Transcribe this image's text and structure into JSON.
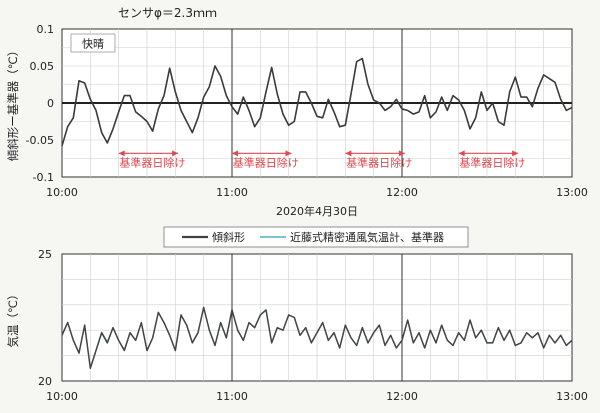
{
  "chart_data": [
    {
      "type": "line",
      "sensor_label": "センサφ＝2.3ｍｍ",
      "weather_label": "快晴",
      "ylabel": "傾斜形ー基準器（℃）",
      "xlabel": "",
      "date_label": "2020年4月30日",
      "xlim": [
        "10:00",
        "13:00"
      ],
      "ylim": [
        -0.1,
        0.1
      ],
      "x_ticks": [
        "10:00",
        "11:00",
        "12:00",
        "13:00"
      ],
      "y_ticks": [
        "0.1",
        "0.05",
        "0",
        "-0.05",
        "-0.1"
      ],
      "grid": true,
      "sun_annotations": [
        {
          "label": "基準器日除け",
          "start": "10:20",
          "end": "10:41"
        },
        {
          "label": "基準器日除け",
          "start": "11:00",
          "end": "11:21"
        },
        {
          "label": "基準器日除け",
          "start": "11:40",
          "end": "12:01"
        },
        {
          "label": "基準器日除け",
          "start": "12:20",
          "end": "12:41"
        }
      ],
      "series": [
        {
          "name": "",
          "minutes": [
            0,
            2,
            4,
            6,
            8,
            10,
            12,
            14,
            16,
            18,
            20,
            22,
            24,
            26,
            28,
            30,
            32,
            34,
            36,
            38,
            40,
            42,
            44,
            46,
            48,
            50,
            52,
            54,
            56,
            58,
            60,
            62,
            64,
            66,
            68,
            70,
            72,
            74,
            76,
            78,
            80,
            82,
            84,
            86,
            88,
            90,
            92,
            94,
            96,
            98,
            100,
            102,
            104,
            106,
            108,
            110,
            112,
            114,
            116,
            118,
            120,
            122,
            124,
            126,
            128,
            130,
            132,
            134,
            136,
            138,
            140,
            142,
            144,
            146,
            148,
            150,
            152,
            154,
            156,
            158,
            160,
            162,
            164,
            166,
            168,
            170,
            172,
            174,
            176,
            178,
            180
          ],
          "values": [
            -0.058,
            -0.032,
            -0.02,
            0.03,
            0.027,
            0.005,
            -0.01,
            -0.04,
            -0.054,
            -0.035,
            -0.012,
            0.01,
            0.01,
            -0.012,
            -0.018,
            -0.025,
            -0.038,
            -0.008,
            0.01,
            0.047,
            0.015,
            -0.01,
            -0.025,
            -0.04,
            -0.02,
            0.008,
            0.022,
            0.05,
            0.036,
            0.01,
            -0.005,
            -0.015,
            0.008,
            -0.01,
            -0.032,
            -0.02,
            0.015,
            0.048,
            0.012,
            -0.015,
            -0.03,
            -0.025,
            0.015,
            0.015,
            0.0,
            -0.018,
            -0.02,
            0.005,
            -0.012,
            -0.032,
            -0.03,
            0.012,
            0.056,
            0.06,
            0.025,
            0.004,
            0.0,
            -0.01,
            -0.005,
            0.005,
            -0.008,
            -0.01,
            -0.015,
            -0.012,
            0.01,
            -0.02,
            -0.012,
            0.008,
            -0.01,
            0.01,
            0.004,
            -0.01,
            -0.035,
            -0.02,
            0.015,
            -0.01,
            0.0,
            -0.025,
            -0.03,
            0.015,
            0.035,
            0.008,
            0.008,
            -0.005,
            0.02,
            0.038,
            0.033,
            0.028,
            0.005,
            -0.01,
            -0.006
          ]
        }
      ]
    },
    {
      "type": "line",
      "xlabel": "",
      "ylabel": "気温（℃）",
      "xlim": [
        "10:00",
        "13:00"
      ],
      "ylim": [
        20,
        25
      ],
      "x_ticks": [
        "10:00",
        "11:00",
        "12:00",
        "13:00"
      ],
      "y_ticks": [
        "25",
        "20"
      ],
      "grid": true,
      "legend": "top-center",
      "series": [
        {
          "name": "傾斜形",
          "color": "#444444",
          "minutes": [
            0,
            2,
            4,
            6,
            8,
            10,
            12,
            14,
            16,
            18,
            20,
            22,
            24,
            26,
            28,
            30,
            32,
            34,
            36,
            38,
            40,
            42,
            44,
            46,
            48,
            50,
            52,
            54,
            56,
            58,
            60,
            62,
            64,
            66,
            68,
            70,
            72,
            74,
            76,
            78,
            80,
            82,
            84,
            86,
            88,
            90,
            92,
            94,
            96,
            98,
            100,
            102,
            104,
            106,
            108,
            110,
            112,
            114,
            116,
            118,
            120,
            122,
            124,
            126,
            128,
            130,
            132,
            134,
            136,
            138,
            140,
            142,
            144,
            146,
            148,
            150,
            152,
            154,
            156,
            158,
            160,
            162,
            164,
            166,
            168,
            170,
            172,
            174,
            176,
            178,
            180
          ],
          "values": [
            21.8,
            22.3,
            21.6,
            21.1,
            22.2,
            20.5,
            21.2,
            21.9,
            21.5,
            22.1,
            21.6,
            21.2,
            21.9,
            21.6,
            22.3,
            21.2,
            21.7,
            22.7,
            22.3,
            21.8,
            21.2,
            22.6,
            22.2,
            21.5,
            21.9,
            22.9,
            22.0,
            21.4,
            22.3,
            21.7,
            22.8,
            22.0,
            21.6,
            22.3,
            22.1,
            22.6,
            22.8,
            21.5,
            22.1,
            22.0,
            22.6,
            22.5,
            21.8,
            22.1,
            21.5,
            21.9,
            22.3,
            21.6,
            21.9,
            21.3,
            22.2,
            21.7,
            21.4,
            22.1,
            21.5,
            21.9,
            22.2,
            21.4,
            21.8,
            21.3,
            21.6,
            22.4,
            21.5,
            21.9,
            21.3,
            22.0,
            21.5,
            22.2,
            21.6,
            21.4,
            21.9,
            21.6,
            22.4,
            21.7,
            22.0,
            21.5,
            21.5,
            22.1,
            21.6,
            22.0,
            21.4,
            21.5,
            21.9,
            21.7,
            21.9,
            21.3,
            21.8,
            21.5,
            21.8,
            21.4,
            21.6
          ]
        },
        {
          "name": "近藤式精密通風気温計、基準器",
          "color": "#4fb0c6",
          "minutes": [
            0,
            2,
            4,
            6,
            8,
            10,
            12,
            14,
            16,
            18,
            20,
            22,
            24,
            26,
            28,
            30,
            32,
            34,
            36,
            38,
            40,
            42,
            44,
            46,
            48,
            50,
            52,
            54,
            56,
            58,
            60,
            62,
            64,
            66,
            68,
            70,
            72,
            74,
            76,
            78,
            80,
            82,
            84,
            86,
            88,
            90,
            92,
            94,
            96,
            98,
            100,
            102,
            104,
            106,
            108,
            110,
            112,
            114,
            116,
            118,
            120,
            122,
            124,
            126,
            128,
            130,
            132,
            134,
            136,
            138,
            140,
            142,
            144,
            146,
            148,
            150,
            152,
            154,
            156,
            158,
            160,
            162,
            164,
            166,
            168,
            170,
            172,
            174,
            176,
            178,
            180
          ],
          "values": [
            21.84,
            22.31,
            21.62,
            21.08,
            22.18,
            20.53,
            21.22,
            21.93,
            21.55,
            22.08,
            21.59,
            21.25,
            21.88,
            21.62,
            22.28,
            21.23,
            21.68,
            22.71,
            22.28,
            21.82,
            21.19,
            22.61,
            22.22,
            21.53,
            21.92,
            22.89,
            22.02,
            21.41,
            22.3,
            21.69,
            22.8,
            22.01,
            21.59,
            22.29,
            22.12,
            22.58,
            22.79,
            21.52,
            22.08,
            22.02,
            22.58,
            22.51,
            21.79,
            22.11,
            21.52,
            21.9,
            22.31,
            21.59,
            21.91,
            21.31,
            22.19,
            21.7,
            21.39,
            22.11,
            21.5,
            21.91,
            22.19,
            21.41,
            21.8,
            21.31,
            21.61,
            22.39,
            21.51,
            21.9,
            21.31,
            21.99,
            21.52,
            22.19,
            21.6,
            21.41,
            21.9,
            21.61,
            22.39,
            21.71,
            21.99,
            21.51,
            21.51,
            22.09,
            21.6,
            21.99,
            21.41,
            21.51,
            21.89,
            21.71,
            21.89,
            21.31,
            21.79,
            21.51,
            21.79,
            21.41,
            21.61
          ]
        }
      ]
    }
  ]
}
